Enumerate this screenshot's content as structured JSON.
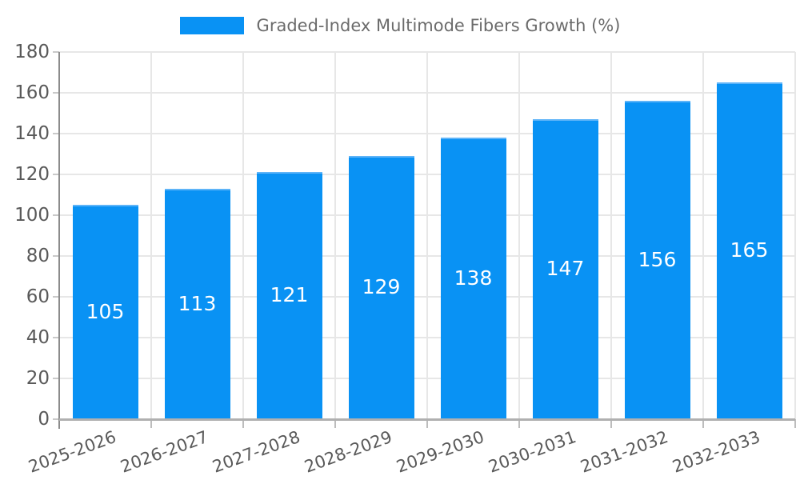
{
  "chart_data": {
    "type": "bar",
    "title": "",
    "legend_label": "Graded-Index Multimode Fibers Growth (%)",
    "legend_position": "top-center",
    "categories": [
      "2025-2026",
      "2026-2027",
      "2027-2028",
      "2028-2029",
      "2029-2030",
      "2030-2031",
      "2031-2032",
      "2032-2033"
    ],
    "values": [
      105,
      113,
      121,
      129,
      138,
      147,
      156,
      165
    ],
    "xlabel": "",
    "ylabel": "",
    "ylim": [
      0,
      180
    ],
    "ytick_step": 20,
    "ytick_labels": [
      "0",
      "20",
      "40",
      "60",
      "80",
      "100",
      "120",
      "140",
      "160",
      "180"
    ],
    "grid": true,
    "bar_color": "#0992f4",
    "value_label_color": "#ffffff"
  }
}
